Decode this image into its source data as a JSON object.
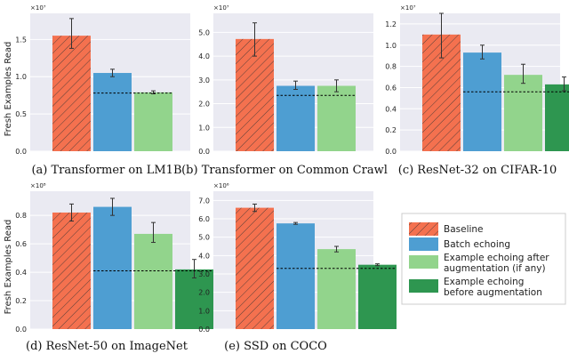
{
  "figure": {
    "ylabel": "Fresh Examples Read"
  },
  "colors": {
    "baseline": "#f4714f",
    "baseline_hatch": "#333333",
    "batch_echoing": "#4e9ed2",
    "example_after": "#92d48c",
    "example_before": "#2e9650",
    "plot_bg": "#eaeaf2",
    "dash": "#000000",
    "error_bar": "#333333"
  },
  "legend": {
    "items": [
      {
        "key": "baseline",
        "lines": [
          "Baseline"
        ]
      },
      {
        "key": "batch_echoing",
        "lines": [
          "Batch echoing"
        ]
      },
      {
        "key": "example_after",
        "lines": [
          "Example echoing after",
          "augmentation (if any)"
        ]
      },
      {
        "key": "example_before",
        "lines": [
          "Example echoing",
          "before augmentation"
        ]
      }
    ]
  },
  "chart_data": [
    {
      "type": "bar",
      "id": "a",
      "caption": "(a) Transformer on LM1B",
      "multiplier": "×10⁷",
      "ylim": [
        0,
        1.85
      ],
      "ticks": [
        0.0,
        0.5,
        1.0,
        1.5
      ],
      "tick_labels": [
        "0.0",
        "0.5",
        "1.0",
        "1.5"
      ],
      "series": [
        {
          "name": "Baseline",
          "key": "baseline",
          "value": 1.55,
          "err": [
            1.38,
            1.78
          ]
        },
        {
          "name": "Batch echoing",
          "key": "batch_echoing",
          "value": 1.05,
          "err": [
            1.0,
            1.1
          ]
        },
        {
          "name": "Example echoing after augmentation (if any)",
          "key": "example_after",
          "value": 0.79,
          "err": [
            0.77,
            0.81
          ]
        }
      ],
      "dashed_line": 0.78
    },
    {
      "type": "bar",
      "id": "b",
      "caption": "(b) Transformer on Common Crawl",
      "multiplier": "×10⁷",
      "ylim": [
        0,
        5.8
      ],
      "ticks": [
        0.0,
        1.0,
        2.0,
        3.0,
        4.0,
        5.0
      ],
      "tick_labels": [
        "0.0",
        "1.0",
        "2.0",
        "3.0",
        "4.0",
        "5.0"
      ],
      "series": [
        {
          "name": "Baseline",
          "key": "baseline",
          "value": 4.72,
          "err": [
            4.0,
            5.4
          ]
        },
        {
          "name": "Batch echoing",
          "key": "batch_echoing",
          "value": 2.75,
          "err": [
            2.6,
            2.95
          ]
        },
        {
          "name": "Example echoing after augmentation (if any)",
          "key": "example_after",
          "value": 2.75,
          "err": [
            2.5,
            3.0
          ]
        }
      ],
      "dashed_line": 2.35
    },
    {
      "type": "bar",
      "id": "c",
      "caption": "(c) ResNet-32 on CIFAR-10",
      "multiplier": "×10⁷",
      "ylim": [
        0,
        1.3
      ],
      "ticks": [
        0.0,
        0.2,
        0.4,
        0.6,
        0.8,
        1.0,
        1.2
      ],
      "tick_labels": [
        "0.0",
        "0.2",
        "0.4",
        "0.6",
        "0.8",
        "1.0",
        "1.2"
      ],
      "series": [
        {
          "name": "Baseline",
          "key": "baseline",
          "value": 1.1,
          "err": [
            0.88,
            1.3
          ]
        },
        {
          "name": "Batch echoing",
          "key": "batch_echoing",
          "value": 0.93,
          "err": [
            0.87,
            1.0
          ]
        },
        {
          "name": "Example echoing after augmentation (if any)",
          "key": "example_after",
          "value": 0.72,
          "err": [
            0.64,
            0.82
          ]
        },
        {
          "name": "Example echoing before augmentation",
          "key": "example_before",
          "value": 0.63,
          "err": [
            0.57,
            0.7
          ]
        }
      ],
      "dashed_line": 0.56
    },
    {
      "type": "bar",
      "id": "d",
      "caption": "(d) ResNet-50 on ImageNet",
      "multiplier": "×10⁸",
      "ylim": [
        0,
        0.97
      ],
      "ticks": [
        0.0,
        0.2,
        0.4,
        0.6,
        0.8
      ],
      "tick_labels": [
        "0.0",
        "0.2",
        "0.4",
        "0.6",
        "0.8"
      ],
      "series": [
        {
          "name": "Baseline",
          "key": "baseline",
          "value": 0.82,
          "err": [
            0.76,
            0.88
          ]
        },
        {
          "name": "Batch echoing",
          "key": "batch_echoing",
          "value": 0.86,
          "err": [
            0.8,
            0.92
          ]
        },
        {
          "name": "Example echoing after augmentation (if any)",
          "key": "example_after",
          "value": 0.67,
          "err": [
            0.61,
            0.75
          ]
        },
        {
          "name": "Example echoing before augmentation",
          "key": "example_before",
          "value": 0.42,
          "err": [
            0.36,
            0.49
          ]
        }
      ],
      "dashed_line": 0.41
    },
    {
      "type": "bar",
      "id": "e",
      "caption": "(e) SSD on COCO",
      "multiplier": "×10⁶",
      "ylim": [
        0,
        7.5
      ],
      "ticks": [
        0.0,
        1.0,
        2.0,
        3.0,
        4.0,
        5.0,
        6.0,
        7.0
      ],
      "tick_labels": [
        "0.0",
        "1.0",
        "2.0",
        "3.0",
        "4.0",
        "5.0",
        "6.0",
        "7.0"
      ],
      "series": [
        {
          "name": "Baseline",
          "key": "baseline",
          "value": 6.6,
          "err": [
            6.4,
            6.8
          ]
        },
        {
          "name": "Batch echoing",
          "key": "batch_echoing",
          "value": 5.75,
          "err": [
            5.7,
            5.8
          ]
        },
        {
          "name": "Example echoing after augmentation (if any)",
          "key": "example_after",
          "value": 4.35,
          "err": [
            4.2,
            4.5
          ]
        },
        {
          "name": "Example echoing before augmentation",
          "key": "example_before",
          "value": 3.5,
          "err": [
            3.45,
            3.55
          ]
        }
      ],
      "dashed_line": 3.3
    }
  ]
}
